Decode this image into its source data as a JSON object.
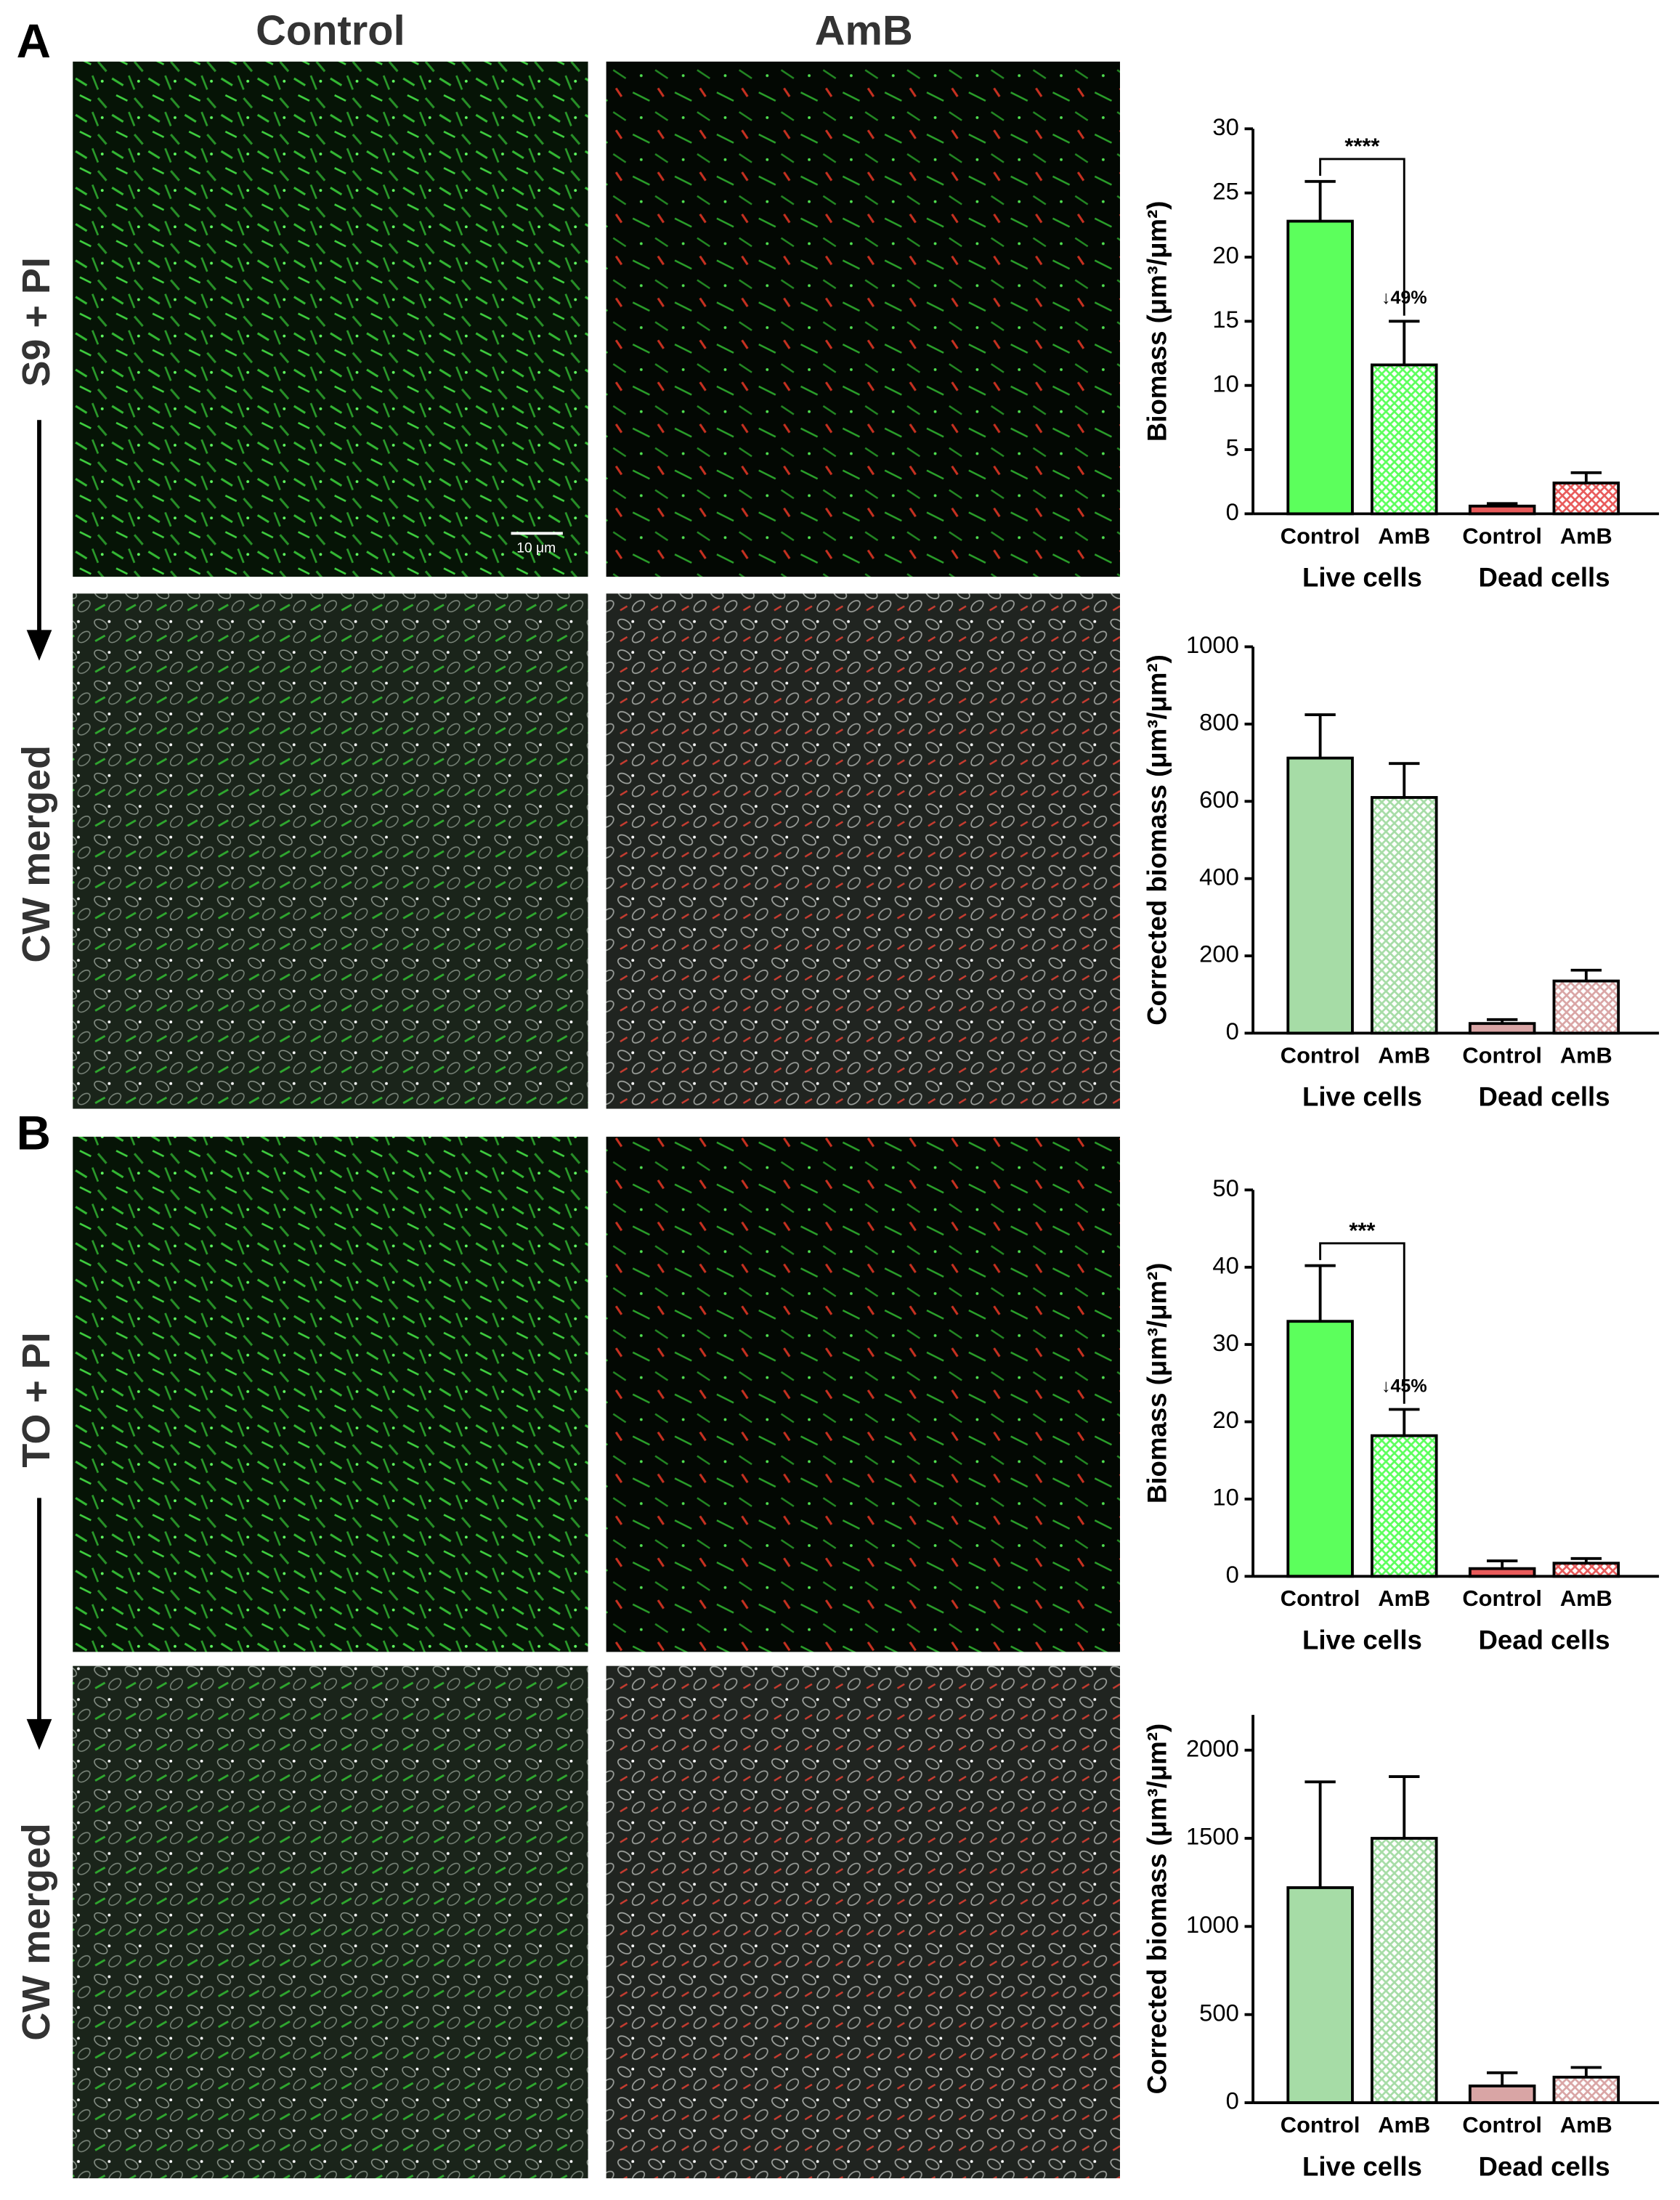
{
  "panels": {
    "labels": [
      "A",
      "B"
    ],
    "columns": [
      "Control",
      "AmB"
    ],
    "rows": [
      "S9 + PI",
      "CW merged",
      "TO + PI",
      "CW merged"
    ],
    "scale_bar": "10 μm"
  },
  "chart_data": [
    {
      "type": "bar",
      "y_label": "Biomass (μm³/μm²)",
      "categories": [
        "Control",
        "AmB",
        "Control",
        "AmB"
      ],
      "groups": [
        "Live cells",
        "Dead cells"
      ],
      "values": [
        22.8,
        11.6,
        0.6,
        2.4
      ],
      "errors": [
        3.1,
        3.4,
        0.2,
        0.8
      ],
      "colors": [
        "#5cff5c",
        "#5cff5c",
        "#e85a5a",
        "#e85a5a"
      ],
      "hatched": [
        false,
        true,
        false,
        true
      ],
      "ylim": [
        0,
        30
      ],
      "yticks": [
        0,
        5,
        10,
        15,
        20,
        25,
        30
      ],
      "significance": "****",
      "change_label": "↓49%"
    },
    {
      "type": "bar",
      "y_label": "Corrected biomass (μm³/μm²)",
      "categories": [
        "Control",
        "AmB",
        "Control",
        "AmB"
      ],
      "groups": [
        "Live cells",
        "Dead cells"
      ],
      "values": [
        712,
        610,
        25,
        135
      ],
      "errors": [
        112,
        88,
        10,
        28
      ],
      "colors": [
        "#a6dca6",
        "#a6dca6",
        "#d9a5a5",
        "#d9a5a5"
      ],
      "hatched": [
        false,
        true,
        false,
        true
      ],
      "ylim": [
        0,
        1000
      ],
      "yticks": [
        0,
        200,
        400,
        600,
        800,
        1000
      ]
    },
    {
      "type": "bar",
      "y_label": "Biomass (μm³/μm²)",
      "categories": [
        "Control",
        "AmB",
        "Control",
        "AmB"
      ],
      "groups": [
        "Live cells",
        "Dead cells"
      ],
      "values": [
        33,
        18.2,
        1.0,
        1.7
      ],
      "errors": [
        7.2,
        3.4,
        1.0,
        0.6
      ],
      "colors": [
        "#5cff5c",
        "#5cff5c",
        "#e85a5a",
        "#e85a5a"
      ],
      "hatched": [
        false,
        true,
        false,
        true
      ],
      "ylim": [
        0,
        50
      ],
      "yticks": [
        0,
        10,
        20,
        30,
        40,
        50
      ],
      "significance": "***",
      "change_label": "↓45%"
    },
    {
      "type": "bar",
      "y_label": "Corrected biomass (μm³/μm²)",
      "categories": [
        "Control",
        "AmB",
        "Control",
        "AmB"
      ],
      "groups": [
        "Live cells",
        "Dead cells"
      ],
      "values": [
        1220,
        1500,
        95,
        145
      ],
      "errors": [
        600,
        350,
        75,
        55
      ],
      "colors": [
        "#a6dca6",
        "#a6dca6",
        "#d9a5a5",
        "#d9a5a5"
      ],
      "hatched": [
        false,
        true,
        false,
        true
      ],
      "ylim": [
        0,
        2200
      ],
      "yticks": [
        0,
        500,
        1000,
        1500,
        2000
      ]
    }
  ]
}
